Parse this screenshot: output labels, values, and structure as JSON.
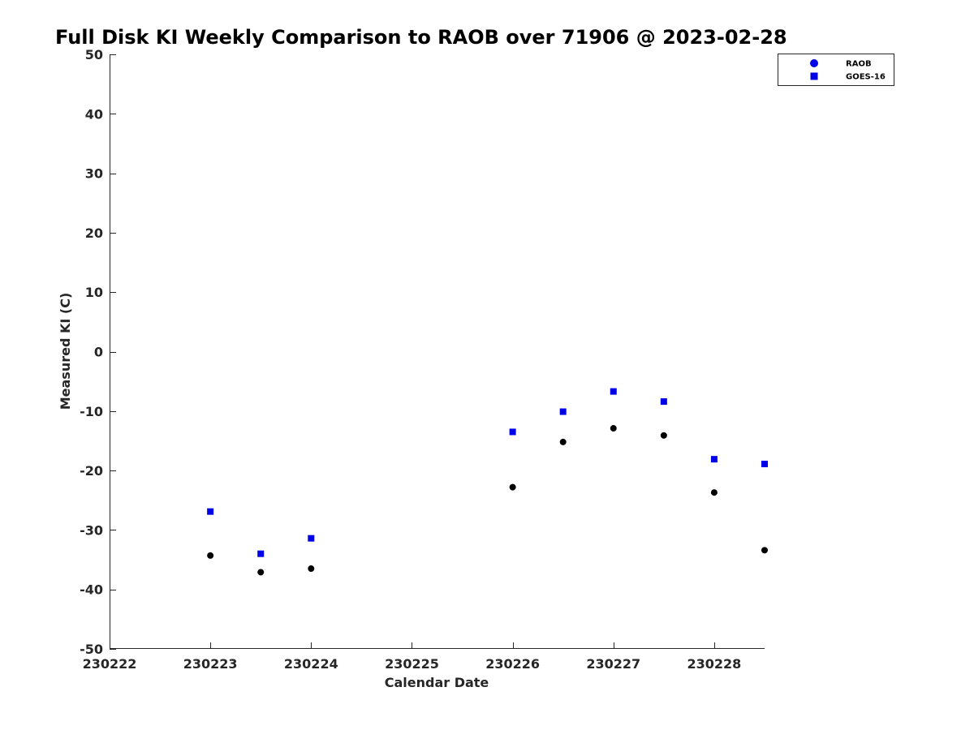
{
  "chart_data": {
    "type": "scatter",
    "title": "Full Disk KI Weekly Comparison to RAOB over 71906 @ 2023-02-28",
    "xlabel": "Calendar Date",
    "ylabel": "Measured KI (C)",
    "xlim": [
      0,
      6.5
    ],
    "ylim": [
      -50,
      50
    ],
    "x_ticks": [
      {
        "value": 0,
        "label": "230222"
      },
      {
        "value": 1,
        "label": "230223"
      },
      {
        "value": 2,
        "label": "230224"
      },
      {
        "value": 3,
        "label": "230225"
      },
      {
        "value": 4,
        "label": "230226"
      },
      {
        "value": 5,
        "label": "230227"
      },
      {
        "value": 6,
        "label": "230228"
      }
    ],
    "y_ticks": [
      50,
      40,
      30,
      20,
      10,
      0,
      -10,
      -20,
      -30,
      -40,
      -50
    ],
    "grid": false,
    "legend_position": "top-right",
    "series": [
      {
        "name": "RAOB",
        "marker": "circle",
        "color": "#000000",
        "legend_color": "#0000e6",
        "x": [
          1,
          1.5,
          2,
          4,
          4.5,
          5,
          5.5,
          6,
          6.5
        ],
        "values": [
          -34.3,
          -37.1,
          -36.5,
          -22.8,
          -15.2,
          -12.9,
          -14.1,
          -23.7,
          -33.4
        ]
      },
      {
        "name": "GOES-16",
        "marker": "square",
        "color": "#0000e6",
        "legend_color": "#0000e6",
        "x": [
          1,
          1.5,
          2,
          4,
          4.5,
          5,
          5.5,
          6,
          6.5
        ],
        "values": [
          -26.9,
          -34.0,
          -31.4,
          -13.5,
          -10.1,
          -6.7,
          -8.4,
          -18.1,
          -18.9
        ]
      }
    ]
  }
}
